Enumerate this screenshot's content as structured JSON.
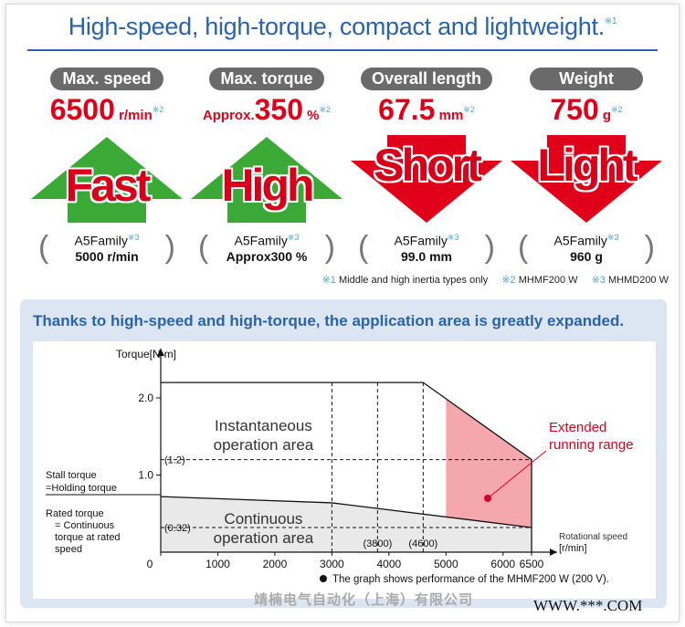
{
  "headline": {
    "text": "High-speed, high-torque, compact and lightweight.",
    "mark": "※1"
  },
  "specs": [
    {
      "label": "Max. speed",
      "prefix": "",
      "value": "6500",
      "unit": "r/min",
      "mark": "※2",
      "arrow": "up",
      "word": "Fast",
      "prev_family": "A5Family",
      "prev_mark": "※3",
      "prev_value": "5000 r/min"
    },
    {
      "label": "Max. torque",
      "prefix": "Approx.",
      "value": "350",
      "unit": "%",
      "mark": "※2",
      "arrow": "up",
      "word": "High",
      "prev_family": "A5Family",
      "prev_mark": "※3",
      "prev_value": "Approx300 %"
    },
    {
      "label": "Overall length",
      "prefix": "",
      "value": "67.5",
      "unit": "mm",
      "mark": "※2",
      "arrow": "down",
      "word": "Short",
      "prev_family": "A5Family",
      "prev_mark": "※3",
      "prev_value": "99.0 mm"
    },
    {
      "label": "Weight",
      "prefix": "",
      "value": "750",
      "unit": "g",
      "mark": "※2",
      "arrow": "down",
      "word": "Light",
      "prev_family": "A5Family",
      "prev_mark": "※3",
      "prev_value": "960 g"
    }
  ],
  "notes": [
    {
      "mark": "※1",
      "text": "Middle and high inertia types only"
    },
    {
      "mark": "※2",
      "text": "MHMF200 W"
    },
    {
      "mark": "※3",
      "text": "MHMD200 W"
    }
  ],
  "panel_title": "Thanks to high-speed and high-torque, the application area is greatly expanded.",
  "chart_data": {
    "type": "area",
    "ylabel": "Torque[N·m]",
    "xlabel": "Rotational speed [r/min]",
    "x_ticks": [
      0,
      1000,
      2000,
      3000,
      4000,
      5000,
      6000,
      6500
    ],
    "y_ticks": [
      1.0,
      2.0
    ],
    "xlim": [
      0,
      6500
    ],
    "ylim": [
      0,
      2.5
    ],
    "instantaneous_boundary": {
      "x": [
        0,
        4600,
        6500,
        6500
      ],
      "y": [
        2.2,
        2.2,
        1.2,
        0
      ]
    },
    "continuous_boundary": {
      "x": [
        0,
        3000,
        6500
      ],
      "y": [
        0.72,
        0.64,
        0.32
      ]
    },
    "extended_range_x": [
      5000,
      6500
    ],
    "marked_x": [
      {
        "value": 3000,
        "label": ""
      },
      {
        "value": 3800,
        "label": "(3800)"
      },
      {
        "value": 4600,
        "label": "(4600)"
      }
    ],
    "marked_y": [
      {
        "value": 1.2,
        "label": "(1.2)"
      },
      {
        "value": 0.32,
        "label": "(0.32)"
      }
    ],
    "stall_label": [
      "Stall torque",
      "=Holding torque"
    ],
    "rated_label": [
      "Rated torque",
      "= Continuous",
      "torque at rated",
      "speed"
    ],
    "instant_area_label": [
      "Instantaneous",
      "operation area"
    ],
    "continuous_area_label": [
      "Continuous",
      "operation area"
    ],
    "extended_label": [
      "Extended",
      "running range"
    ],
    "footnote": "The graph shows performance of the MHMF200 W (200 V).",
    "colors": {
      "continuous_fill": "#e9e9e9",
      "extended_fill": "#f4a7ad",
      "extended_text": "#e1001a",
      "extended_dot": "#d7002a"
    }
  },
  "watermark": {
    "cn": "靖楠电气自动化（上海）有限公司",
    "site": "WWW.***.COM"
  }
}
